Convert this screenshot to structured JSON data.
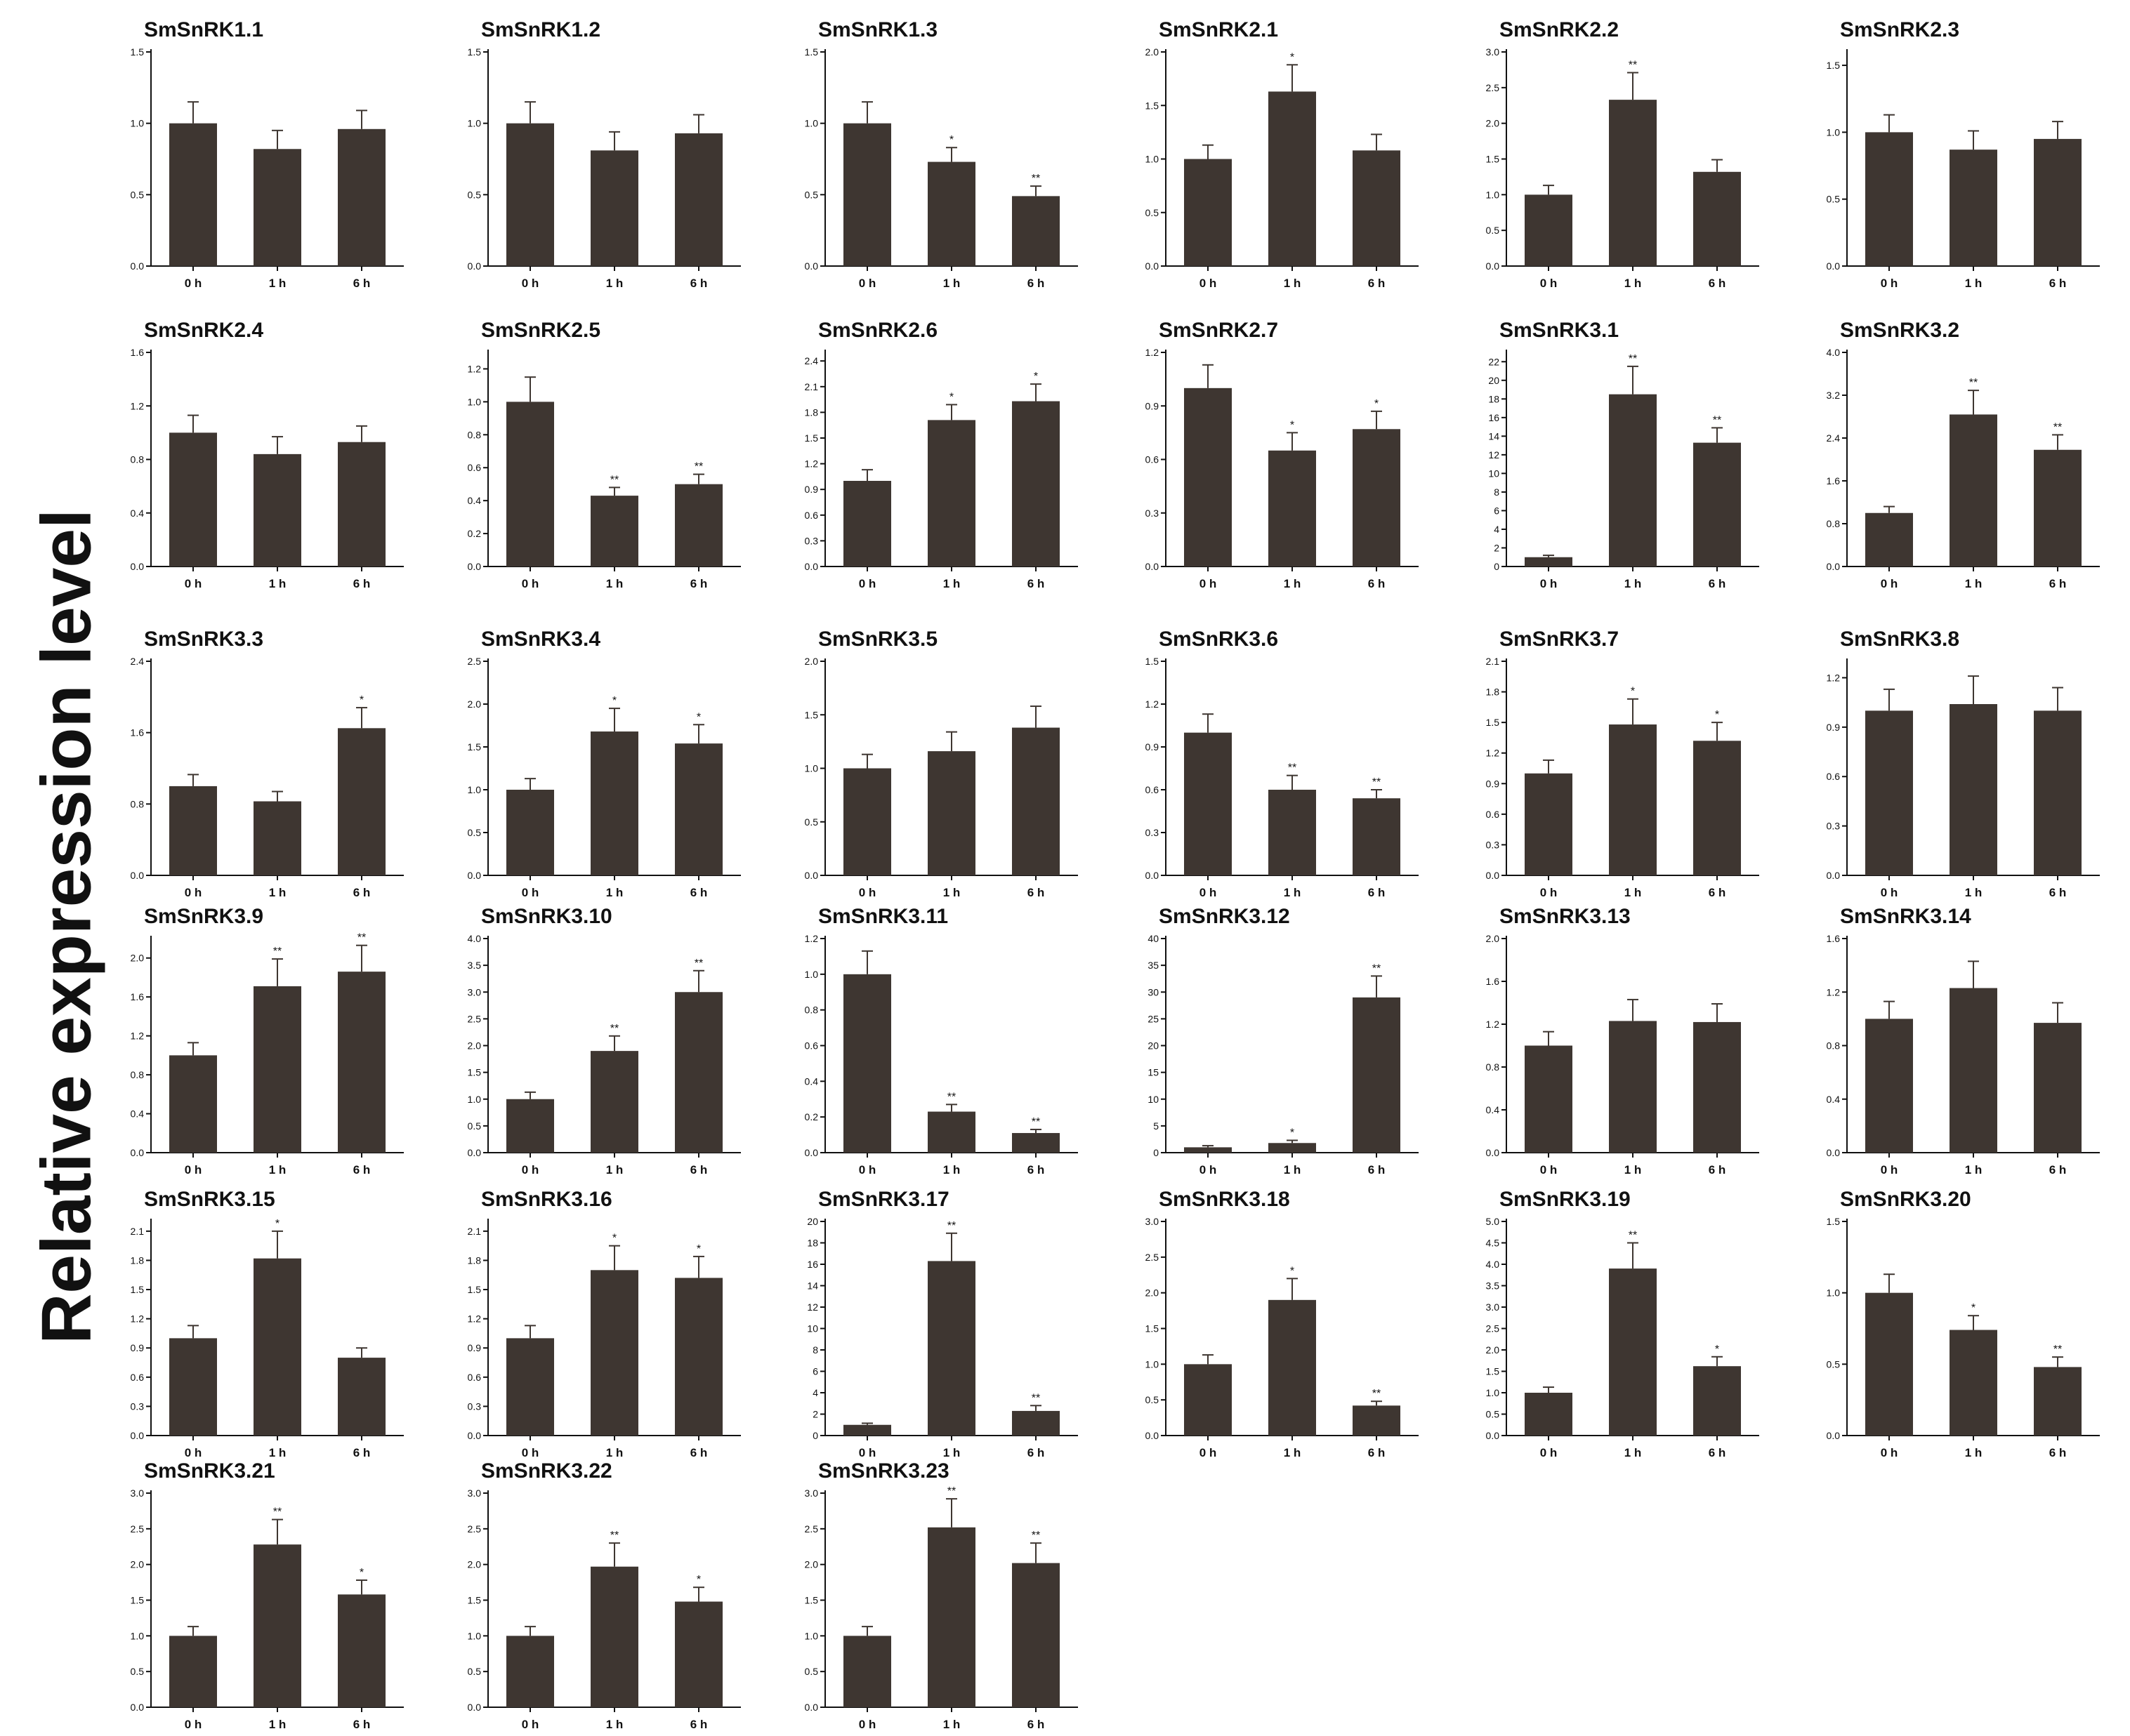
{
  "figure": {
    "ylabel": "Relative expression level",
    "bar_color": "#3e3631",
    "categories": [
      "0 h",
      "1 h",
      "6 h"
    ]
  },
  "chart_data": [
    {
      "type": "bar",
      "title": "SmSnRK1.1",
      "categories": [
        "0 h",
        "1 h",
        "6 h"
      ],
      "values": [
        1.0,
        0.82,
        0.96
      ],
      "errors": [
        0.15,
        0.13,
        0.13
      ],
      "sig": [
        "",
        "",
        ""
      ],
      "ylim": [
        0,
        1.5
      ],
      "yticks": [
        "0.0",
        "0.5",
        "1.0",
        "1.5"
      ]
    },
    {
      "type": "bar",
      "title": "SmSnRK1.2",
      "categories": [
        "0 h",
        "1 h",
        "6 h"
      ],
      "values": [
        1.0,
        0.81,
        0.93
      ],
      "errors": [
        0.15,
        0.13,
        0.13
      ],
      "sig": [
        "",
        "",
        ""
      ],
      "ylim": [
        0,
        1.5
      ],
      "yticks": [
        "0.0",
        "0.5",
        "1.0",
        "1.5"
      ]
    },
    {
      "type": "bar",
      "title": "SmSnRK1.3",
      "categories": [
        "0 h",
        "1 h",
        "6 h"
      ],
      "values": [
        1.0,
        0.73,
        0.49
      ],
      "errors": [
        0.15,
        0.1,
        0.07
      ],
      "sig": [
        "",
        "*",
        "**"
      ],
      "ylim": [
        0,
        1.5
      ],
      "yticks": [
        "0.0",
        "0.5",
        "1.0",
        "1.5"
      ]
    },
    {
      "type": "bar",
      "title": "SmSnRK2.1",
      "categories": [
        "0 h",
        "1 h",
        "6 h"
      ],
      "values": [
        1.0,
        1.63,
        1.08
      ],
      "errors": [
        0.13,
        0.25,
        0.15
      ],
      "sig": [
        "",
        "*",
        ""
      ],
      "ylim": [
        0,
        2.0
      ],
      "yticks": [
        "0.0",
        "0.5",
        "1.0",
        "1.5",
        "2.0"
      ]
    },
    {
      "type": "bar",
      "title": "SmSnRK2.2",
      "categories": [
        "0 h",
        "1 h",
        "6 h"
      ],
      "values": [
        1.0,
        2.33,
        1.32
      ],
      "errors": [
        0.13,
        0.38,
        0.17
      ],
      "sig": [
        "",
        "**",
        ""
      ],
      "ylim": [
        0,
        3.0
      ],
      "yticks": [
        "0.0",
        "0.5",
        "1.0",
        "1.5",
        "2.0",
        "2.5",
        "3.0"
      ]
    },
    {
      "type": "bar",
      "title": "SmSnRK2.3",
      "categories": [
        "0 h",
        "1 h",
        "6 h"
      ],
      "values": [
        1.0,
        0.87,
        0.95
      ],
      "errors": [
        0.13,
        0.14,
        0.13
      ],
      "sig": [
        "",
        "",
        ""
      ],
      "ylim": [
        0,
        1.6
      ],
      "yticks": [
        "0.0",
        "0.5",
        "1.0",
        "1.5"
      ]
    },
    {
      "type": "bar",
      "title": "SmSnRK2.4",
      "categories": [
        "0 h",
        "1 h",
        "6 h"
      ],
      "values": [
        1.0,
        0.84,
        0.93
      ],
      "errors": [
        0.13,
        0.13,
        0.12
      ],
      "sig": [
        "",
        "",
        ""
      ],
      "ylim": [
        0,
        1.6
      ],
      "yticks": [
        "0.0",
        "0.4",
        "0.8",
        "1.2",
        "1.6"
      ]
    },
    {
      "type": "bar",
      "title": "SmSnRK2.5",
      "categories": [
        "0 h",
        "1 h",
        "6 h"
      ],
      "values": [
        1.0,
        0.43,
        0.5
      ],
      "errors": [
        0.15,
        0.05,
        0.06
      ],
      "sig": [
        "",
        "**",
        "**"
      ],
      "ylim": [
        0,
        1.3
      ],
      "yticks": [
        "0.0",
        "0.2",
        "0.4",
        "0.6",
        "0.8",
        "1.0",
        "1.2"
      ]
    },
    {
      "type": "bar",
      "title": "SmSnRK2.6",
      "categories": [
        "0 h",
        "1 h",
        "6 h"
      ],
      "values": [
        1.0,
        1.71,
        1.93
      ],
      "errors": [
        0.13,
        0.18,
        0.2
      ],
      "sig": [
        "",
        "*",
        "*"
      ],
      "ylim": [
        0,
        2.5
      ],
      "yticks": [
        "0.0",
        "0.3",
        "0.6",
        "0.9",
        "1.2",
        "1.5",
        "1.8",
        "2.1",
        "2.4"
      ]
    },
    {
      "type": "bar",
      "title": "SmSnRK2.7",
      "categories": [
        "0 h",
        "1 h",
        "6 h"
      ],
      "values": [
        1.0,
        0.65,
        0.77
      ],
      "errors": [
        0.13,
        0.1,
        0.1
      ],
      "sig": [
        "",
        "*",
        "*"
      ],
      "ylim": [
        0,
        1.2
      ],
      "yticks": [
        "0.0",
        "0.3",
        "0.6",
        "0.9",
        "1.2"
      ]
    },
    {
      "type": "bar",
      "title": "SmSnRK3.1",
      "categories": [
        "0 h",
        "1 h",
        "6 h"
      ],
      "values": [
        1.0,
        18.5,
        13.3
      ],
      "errors": [
        0.2,
        3.0,
        1.6
      ],
      "sig": [
        "",
        "**",
        "**"
      ],
      "ylim": [
        0,
        23
      ],
      "yticks": [
        "0",
        "2",
        "4",
        "6",
        "8",
        "10",
        "12",
        "14",
        "16",
        "18",
        "20",
        "22"
      ]
    },
    {
      "type": "bar",
      "title": "SmSnRK3.2",
      "categories": [
        "0 h",
        "1 h",
        "6 h"
      ],
      "values": [
        1.0,
        2.84,
        2.18
      ],
      "errors": [
        0.12,
        0.45,
        0.28
      ],
      "sig": [
        "",
        "**",
        "**"
      ],
      "ylim": [
        0,
        4.0
      ],
      "yticks": [
        "0.0",
        "0.8",
        "1.6",
        "2.4",
        "3.2",
        "4.0"
      ]
    },
    {
      "type": "bar",
      "title": "SmSnRK3.3",
      "categories": [
        "0 h",
        "1 h",
        "6 h"
      ],
      "values": [
        1.0,
        0.83,
        1.65
      ],
      "errors": [
        0.13,
        0.11,
        0.23
      ],
      "sig": [
        "",
        "",
        "*"
      ],
      "ylim": [
        0,
        2.4
      ],
      "yticks": [
        "0.0",
        "0.8",
        "1.6",
        "2.4"
      ]
    },
    {
      "type": "bar",
      "title": "SmSnRK3.4",
      "categories": [
        "0 h",
        "1 h",
        "6 h"
      ],
      "values": [
        1.0,
        1.68,
        1.54
      ],
      "errors": [
        0.13,
        0.27,
        0.22
      ],
      "sig": [
        "",
        "*",
        "*"
      ],
      "ylim": [
        0,
        2.5
      ],
      "yticks": [
        "0.0",
        "0.5",
        "1.0",
        "1.5",
        "2.0",
        "2.5"
      ]
    },
    {
      "type": "bar",
      "title": "SmSnRK3.5",
      "categories": [
        "0 h",
        "1 h",
        "6 h"
      ],
      "values": [
        1.0,
        1.16,
        1.38
      ],
      "errors": [
        0.13,
        0.18,
        0.2
      ],
      "sig": [
        "",
        "",
        ""
      ],
      "ylim": [
        0,
        2.0
      ],
      "yticks": [
        "0.0",
        "0.5",
        "1.0",
        "1.5",
        "2.0"
      ]
    },
    {
      "type": "bar",
      "title": "SmSnRK3.6",
      "categories": [
        "0 h",
        "1 h",
        "6 h"
      ],
      "values": [
        1.0,
        0.6,
        0.54
      ],
      "errors": [
        0.13,
        0.1,
        0.06
      ],
      "sig": [
        "",
        "**",
        "**"
      ],
      "ylim": [
        0,
        1.5
      ],
      "yticks": [
        "0.0",
        "0.3",
        "0.6",
        "0.9",
        "1.2",
        "1.5"
      ]
    },
    {
      "type": "bar",
      "title": "SmSnRK3.7",
      "categories": [
        "0 h",
        "1 h",
        "6 h"
      ],
      "values": [
        1.0,
        1.48,
        1.32
      ],
      "errors": [
        0.13,
        0.25,
        0.18
      ],
      "sig": [
        "",
        "*",
        "*"
      ],
      "ylim": [
        0,
        2.1
      ],
      "yticks": [
        "0.0",
        "0.3",
        "0.6",
        "0.9",
        "1.2",
        "1.5",
        "1.8",
        "2.1"
      ]
    },
    {
      "type": "bar",
      "title": "SmSnRK3.8",
      "categories": [
        "0 h",
        "1 h",
        "6 h"
      ],
      "values": [
        1.0,
        1.04,
        1.0
      ],
      "errors": [
        0.13,
        0.17,
        0.14
      ],
      "sig": [
        "",
        "",
        ""
      ],
      "ylim": [
        0,
        1.3
      ],
      "yticks": [
        "0.0",
        "0.3",
        "0.6",
        "0.9",
        "1.2"
      ]
    },
    {
      "type": "bar",
      "title": "SmSnRK3.9",
      "categories": [
        "0 h",
        "1 h",
        "6 h"
      ],
      "values": [
        1.0,
        1.71,
        1.86
      ],
      "errors": [
        0.13,
        0.28,
        0.27
      ],
      "sig": [
        "",
        "**",
        "**"
      ],
      "ylim": [
        0,
        2.2
      ],
      "yticks": [
        "0.0",
        "0.4",
        "0.8",
        "1.2",
        "1.6",
        "2.0"
      ]
    },
    {
      "type": "bar",
      "title": "SmSnRK3.10",
      "categories": [
        "0 h",
        "1 h",
        "6 h"
      ],
      "values": [
        1.0,
        1.9,
        3.0
      ],
      "errors": [
        0.13,
        0.28,
        0.4
      ],
      "sig": [
        "",
        "**",
        "**"
      ],
      "ylim": [
        0,
        4.0
      ],
      "yticks": [
        "0.0",
        "0.5",
        "1.0",
        "1.5",
        "2.0",
        "2.5",
        "3.0",
        "3.5",
        "4.0"
      ]
    },
    {
      "type": "bar",
      "title": "SmSnRK3.11",
      "categories": [
        "0 h",
        "1 h",
        "6 h"
      ],
      "values": [
        1.0,
        0.23,
        0.11
      ],
      "errors": [
        0.13,
        0.04,
        0.02
      ],
      "sig": [
        "",
        "**",
        "**"
      ],
      "ylim": [
        0,
        1.2
      ],
      "yticks": [
        "0.0",
        "0.2",
        "0.4",
        "0.6",
        "0.8",
        "1.0",
        "1.2"
      ]
    },
    {
      "type": "bar",
      "title": "SmSnRK3.12",
      "categories": [
        "0 h",
        "1 h",
        "6 h"
      ],
      "values": [
        1.0,
        1.8,
        29.0
      ],
      "errors": [
        0.3,
        0.5,
        4.0
      ],
      "sig": [
        "",
        "*",
        "**"
      ],
      "ylim": [
        0,
        40
      ],
      "yticks": [
        "0",
        "5",
        "10",
        "15",
        "20",
        "25",
        "30",
        "35",
        "40"
      ]
    },
    {
      "type": "bar",
      "title": "SmSnRK3.13",
      "categories": [
        "0 h",
        "1 h",
        "6 h"
      ],
      "values": [
        1.0,
        1.23,
        1.22
      ],
      "errors": [
        0.13,
        0.2,
        0.17
      ],
      "sig": [
        "",
        "",
        ""
      ],
      "ylim": [
        0,
        2.0
      ],
      "yticks": [
        "0.0",
        "0.4",
        "0.8",
        "1.2",
        "1.6",
        "2.0"
      ]
    },
    {
      "type": "bar",
      "title": "SmSnRK3.14",
      "categories": [
        "0 h",
        "1 h",
        "6 h"
      ],
      "values": [
        1.0,
        1.23,
        0.97
      ],
      "errors": [
        0.13,
        0.2,
        0.15
      ],
      "sig": [
        "",
        "",
        ""
      ],
      "ylim": [
        0,
        1.6
      ],
      "yticks": [
        "0.0",
        "0.4",
        "0.8",
        "1.2",
        "1.6"
      ]
    },
    {
      "type": "bar",
      "title": "SmSnRK3.15",
      "categories": [
        "0 h",
        "1 h",
        "6 h"
      ],
      "values": [
        1.0,
        1.82,
        0.8
      ],
      "errors": [
        0.13,
        0.28,
        0.1
      ],
      "sig": [
        "",
        "*",
        ""
      ],
      "ylim": [
        0,
        2.2
      ],
      "yticks": [
        "0.0",
        "0.3",
        "0.6",
        "0.9",
        "1.2",
        "1.5",
        "1.8",
        "2.1"
      ]
    },
    {
      "type": "bar",
      "title": "SmSnRK3.16",
      "categories": [
        "0 h",
        "1 h",
        "6 h"
      ],
      "values": [
        1.0,
        1.7,
        1.62
      ],
      "errors": [
        0.13,
        0.25,
        0.22
      ],
      "sig": [
        "",
        "*",
        "*"
      ],
      "ylim": [
        0,
        2.2
      ],
      "yticks": [
        "0.0",
        "0.3",
        "0.6",
        "0.9",
        "1.2",
        "1.5",
        "1.8",
        "2.1"
      ]
    },
    {
      "type": "bar",
      "title": "SmSnRK3.17",
      "categories": [
        "0 h",
        "1 h",
        "6 h"
      ],
      "values": [
        1.0,
        16.3,
        2.3
      ],
      "errors": [
        0.15,
        2.6,
        0.5
      ],
      "sig": [
        "",
        "**",
        "**"
      ],
      "ylim": [
        0,
        20
      ],
      "yticks": [
        "0",
        "2",
        "4",
        "6",
        "8",
        "10",
        "12",
        "14",
        "16",
        "18",
        "20"
      ]
    },
    {
      "type": "bar",
      "title": "SmSnRK3.18",
      "categories": [
        "0 h",
        "1 h",
        "6 h"
      ],
      "values": [
        1.0,
        1.9,
        0.42
      ],
      "errors": [
        0.13,
        0.3,
        0.06
      ],
      "sig": [
        "",
        "*",
        "**"
      ],
      "ylim": [
        0,
        3.0
      ],
      "yticks": [
        "0.0",
        "0.5",
        "1.0",
        "1.5",
        "2.0",
        "2.5",
        "3.0"
      ]
    },
    {
      "type": "bar",
      "title": "SmSnRK3.19",
      "categories": [
        "0 h",
        "1 h",
        "6 h"
      ],
      "values": [
        1.0,
        3.9,
        1.62
      ],
      "errors": [
        0.13,
        0.6,
        0.22
      ],
      "sig": [
        "",
        "**",
        "*"
      ],
      "ylim": [
        0,
        5.0
      ],
      "yticks": [
        "0.0",
        "0.5",
        "1.0",
        "1.5",
        "2.0",
        "2.5",
        "3.0",
        "3.5",
        "4.0",
        "4.5",
        "5.0"
      ]
    },
    {
      "type": "bar",
      "title": "SmSnRK3.20",
      "categories": [
        "0 h",
        "1 h",
        "6 h"
      ],
      "values": [
        1.0,
        0.74,
        0.48
      ],
      "errors": [
        0.13,
        0.1,
        0.07
      ],
      "sig": [
        "",
        "*",
        "**"
      ],
      "ylim": [
        0,
        1.5
      ],
      "yticks": [
        "0.0",
        "0.5",
        "1.0",
        "1.5"
      ]
    },
    {
      "type": "bar",
      "title": "SmSnRK3.21",
      "categories": [
        "0 h",
        "1 h",
        "6 h"
      ],
      "values": [
        1.0,
        2.28,
        1.58
      ],
      "errors": [
        0.13,
        0.35,
        0.2
      ],
      "sig": [
        "",
        "**",
        "*"
      ],
      "ylim": [
        0,
        3.0
      ],
      "yticks": [
        "0.0",
        "0.5",
        "1.0",
        "1.5",
        "2.0",
        "2.5",
        "3.0"
      ]
    },
    {
      "type": "bar",
      "title": "SmSnRK3.22",
      "categories": [
        "0 h",
        "1 h",
        "6 h"
      ],
      "values": [
        1.0,
        1.97,
        1.48
      ],
      "errors": [
        0.13,
        0.33,
        0.2
      ],
      "sig": [
        "",
        "**",
        "*"
      ],
      "ylim": [
        0,
        3.0
      ],
      "yticks": [
        "0.0",
        "0.5",
        "1.0",
        "1.5",
        "2.0",
        "2.5",
        "3.0"
      ]
    },
    {
      "type": "bar",
      "title": "SmSnRK3.23",
      "categories": [
        "0 h",
        "1 h",
        "6 h"
      ],
      "values": [
        1.0,
        2.52,
        2.02
      ],
      "errors": [
        0.13,
        0.4,
        0.28
      ],
      "sig": [
        "",
        "**",
        "**"
      ],
      "ylim": [
        0,
        3.0
      ],
      "yticks": [
        "0.0",
        "0.5",
        "1.0",
        "1.5",
        "2.0",
        "2.5",
        "3.0"
      ]
    }
  ]
}
